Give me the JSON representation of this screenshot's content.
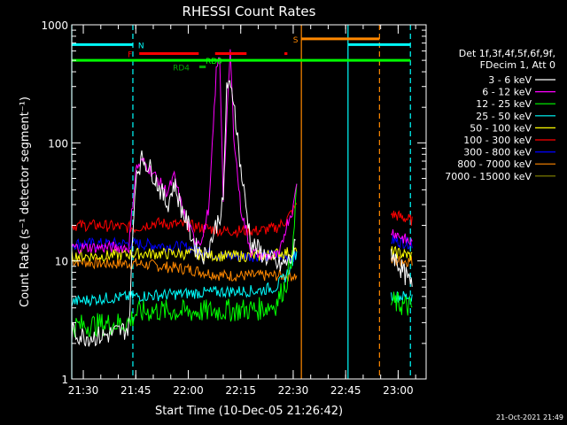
{
  "chart_data": {
    "type": "line",
    "title": "RHESSI Count Rates",
    "xlabel": "Start Time (10-Dec-05 21:26:42)",
    "ylabel": "Count Rate (s⁻¹ detector segment⁻¹)",
    "yscale": "log",
    "ylim": [
      1,
      1000
    ],
    "xlim": [
      "21:26:42",
      "23:08:00"
    ],
    "x_ticks": [
      "21:30",
      "21:45",
      "22:00",
      "22:15",
      "22:30",
      "22:45",
      "23:00"
    ],
    "y_ticks": [
      "1",
      "10",
      "100",
      "1000"
    ],
    "grid": false,
    "legend_position": "right",
    "legend_header": [
      "Det 1f,3f,4f,5f,6f,9f,",
      "FDecim 1, Att 0"
    ],
    "footer_timestamp": "21-Oct-2021 21:49",
    "series": [
      {
        "name": "3 - 6 keV",
        "color": "#ffffff",
        "x": [
          "21:26:42",
          "21:30",
          "21:35",
          "21:40",
          "21:43",
          "21:45",
          "21:47",
          "21:50",
          "21:52",
          "21:54",
          "21:56",
          "21:58",
          "22:00",
          "22:02",
          "22:05",
          "22:10",
          "22:11",
          "22:13",
          "22:15",
          "22:18",
          "22:22",
          "22:26",
          "22:29",
          "22:30",
          "22:31",
          "23:21:00"
        ],
        "y": [
          2.5,
          2.3,
          2.3,
          2.5,
          2.7,
          55,
          75,
          55,
          40,
          30,
          45,
          28,
          20,
          13,
          11,
          30,
          320,
          240,
          60,
          14,
          11,
          9,
          10,
          12,
          14,
          null
        ]
      },
      {
        "name": "6 - 12 keV",
        "color": "#ff00ff",
        "x": [
          "21:26:42",
          "21:35",
          "21:43",
          "21:45",
          "21:47",
          "21:50",
          "21:54",
          "21:56",
          "21:58",
          "22:00",
          "22:02",
          "22:04",
          "22:06",
          "22:08",
          "22:09",
          "22:10",
          "22:12",
          "22:13",
          "22:15",
          "22:18",
          "22:22",
          "22:26",
          "22:28",
          "22:30",
          "22:31"
        ],
        "y": [
          13,
          13,
          13,
          60,
          70,
          55,
          38,
          52,
          30,
          20,
          15,
          15,
          30,
          400,
          550,
          35,
          600,
          120,
          28,
          12,
          11,
          11,
          20,
          28,
          45
        ]
      },
      {
        "name": "12 - 25 keV",
        "color": "#00ff00",
        "x": [
          "21:26:42",
          "21:35",
          "21:43",
          "21:45",
          "21:50",
          "22:00",
          "22:10",
          "22:20",
          "22:25",
          "22:28",
          "22:30",
          "22:31"
        ],
        "y": [
          2.8,
          2.9,
          3.0,
          3.6,
          3.8,
          3.7,
          3.8,
          3.9,
          4.3,
          6.5,
          13,
          45
        ]
      },
      {
        "name": "25 - 50 keV",
        "color": "#00ffff",
        "x": [
          "21:26:42",
          "21:35",
          "21:45",
          "22:00",
          "22:10",
          "22:20",
          "22:25",
          "22:28",
          "22:31"
        ],
        "y": [
          4.5,
          4.8,
          5.0,
          5.3,
          5.5,
          5.6,
          6.0,
          7.5,
          12
        ]
      },
      {
        "name": "50 - 100 keV",
        "color": "#ffff00",
        "x": [
          "21:26:42",
          "21:35",
          "21:45",
          "22:00",
          "22:10",
          "22:20",
          "22:25",
          "22:31"
        ],
        "y": [
          11,
          11,
          11.5,
          11.5,
          11,
          11,
          11.5,
          12
        ]
      },
      {
        "name": "100 - 300 keV",
        "color": "#ff0000",
        "x": [
          "21:26:42",
          "21:35",
          "21:45",
          "21:50",
          "22:00",
          "22:10",
          "22:20",
          "22:25",
          "22:28",
          "22:31"
        ],
        "y": [
          20,
          20,
          19,
          21,
          20,
          18,
          18,
          19,
          22,
          30
        ]
      },
      {
        "name": "300 - 800 keV",
        "color": "#0000ff",
        "x": [
          "21:26:42",
          "21:35",
          "21:45",
          "22:00",
          "22:10",
          "22:20",
          "22:31"
        ],
        "y": [
          14,
          14,
          14,
          13,
          11,
          11,
          11
        ]
      },
      {
        "name": "800 - 7000 keV",
        "color": "#ff8800",
        "x": [
          "21:26:42",
          "21:35",
          "21:45",
          "22:00",
          "22:10",
          "22:20",
          "22:31"
        ],
        "y": [
          10,
          9.5,
          9.5,
          8.5,
          7.5,
          7.5,
          7.5
        ]
      },
      {
        "name": "7000 - 15000 keV",
        "color": "#888800",
        "x": [],
        "y": []
      }
    ],
    "late_segment_values": {
      "x_start": "22:58",
      "x_end": "23:04",
      "3 - 6 keV": [
        12,
        6
      ],
      "6 - 12 keV": [
        18,
        14
      ],
      "12 - 25 keV": [
        4.5,
        4
      ],
      "25 - 50 keV": [
        5,
        5
      ],
      "50 - 100 keV": [
        12,
        11
      ],
      "100 - 300 keV": [
        25,
        22
      ],
      "300 - 800 keV": [
        15,
        14
      ],
      "800 - 7000 keV": [
        10,
        10
      ]
    },
    "vertical_markers": [
      {
        "x": "21:26:42",
        "color": "#00ffff",
        "style": "solid"
      },
      {
        "x": "21:44:10",
        "color": "#00ffff",
        "style": "dashed"
      },
      {
        "x": "22:32:20",
        "color": "#ff8800",
        "style": "solid"
      },
      {
        "x": "22:45:40",
        "color": "#00ffff",
        "style": "solid"
      },
      {
        "x": "22:54:40",
        "color": "#ff8800",
        "style": "dashed"
      },
      {
        "x": "23:03:30",
        "color": "#00ffff",
        "style": "dashed"
      }
    ],
    "flag_bars": [
      {
        "label": "N",
        "color": "#00ffff",
        "y_level": 680,
        "segments": [
          [
            "21:26:42",
            "21:44:10"
          ],
          [
            "22:45:40",
            "23:03:30"
          ]
        ],
        "label_x": "21:46:30"
      },
      {
        "label": "F",
        "color": "#ff0000",
        "y_level": 570,
        "segments": [
          [
            "21:46:00",
            "22:03:00"
          ],
          [
            "22:07:40",
            "22:16:40"
          ],
          [
            "22:27:30",
            "22:28:20"
          ]
        ],
        "label_x": "21:43:20"
      },
      {
        "label": "S",
        "color": "#ff8800",
        "y_level": 760,
        "segments": [
          [
            "22:32:20",
            "22:54:40"
          ]
        ],
        "label_x": "22:30:40"
      },
      {
        "label": "RD0",
        "color": "#00ff00",
        "y_level": 500,
        "segments": [
          [
            "21:26:42",
            "23:03:30"
          ]
        ],
        "label_x": "22:07:20"
      },
      {
        "label": "RD4",
        "color": "#00aa00",
        "y_level": 440,
        "segments": [
          [
            "22:03:10",
            "22:05:00"
          ]
        ],
        "label_x": "21:58:00"
      }
    ]
  }
}
